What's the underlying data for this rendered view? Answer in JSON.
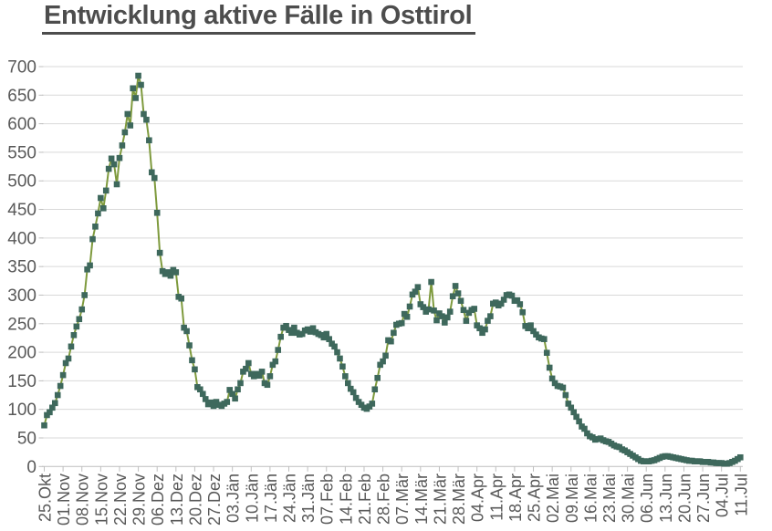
{
  "chart_data": {
    "type": "line",
    "title": "Entwicklung aktive Fälle in Osttirol",
    "xlabel": "",
    "ylabel": "",
    "ylim": [
      0,
      700
    ],
    "y_tick_step": 50,
    "y_tick_labels": [
      "0",
      "50",
      "100",
      "150",
      "200",
      "250",
      "300",
      "350",
      "400",
      "450",
      "500",
      "550",
      "600",
      "650",
      "700"
    ],
    "grid": true,
    "legend": false,
    "marker": "square",
    "x_tick_interval_days": 7,
    "x_tick_labels": [
      "25.Okt",
      "01.Nov",
      "08.Nov",
      "15.Nov",
      "22.Nov",
      "29.Nov",
      "06.Dez",
      "13.Dez",
      "20.Dez",
      "27.Dez",
      "03.Jän",
      "10.Jän",
      "17.Jän",
      "24.Jän",
      "31.Jän",
      "07.Feb",
      "14.Feb",
      "21.Feb",
      "28.Feb",
      "07.Mär",
      "14.Mär",
      "21.Mär",
      "28.Mär",
      "04.Apr",
      "11.Apr",
      "18.Apr",
      "25.Apr",
      "02.Mai",
      "09.Mai",
      "16.Mai",
      "23.Mai",
      "30.Mai",
      "06.Jun",
      "13.Jun",
      "20.Jun",
      "27.Jun",
      "04.Jul",
      "11.Jul"
    ],
    "values": [
      72,
      90,
      95,
      103,
      111,
      125,
      141,
      160,
      181,
      189,
      210,
      230,
      245,
      258,
      275,
      300,
      345,
      352,
      398,
      420,
      443,
      470,
      452,
      483,
      521,
      539,
      529,
      494,
      540,
      562,
      585,
      617,
      597,
      662,
      645,
      684,
      668,
      617,
      607,
      571,
      515,
      505,
      444,
      374,
      342,
      337,
      340,
      334,
      344,
      340,
      297,
      294,
      243,
      237,
      212,
      186,
      170,
      139,
      135,
      127,
      118,
      109,
      112,
      106,
      113,
      108,
      106,
      110,
      113,
      134,
      127,
      119,
      135,
      146,
      166,
      171,
      181,
      162,
      158,
      162,
      159,
      166,
      146,
      143,
      158,
      178,
      184,
      204,
      227,
      243,
      246,
      239,
      234,
      243,
      234,
      231,
      232,
      238,
      240,
      236,
      242,
      235,
      232,
      230,
      226,
      232,
      223,
      215,
      210,
      200,
      189,
      175,
      158,
      146,
      136,
      130,
      120,
      113,
      108,
      103,
      101,
      105,
      110,
      135,
      155,
      178,
      184,
      194,
      221,
      219,
      234,
      248,
      250,
      251,
      267,
      262,
      280,
      301,
      306,
      314,
      284,
      279,
      271,
      275,
      323,
      273,
      256,
      268,
      263,
      252,
      261,
      271,
      298,
      316,
      303,
      290,
      274,
      255,
      269,
      274,
      276,
      247,
      242,
      234,
      240,
      255,
      263,
      285,
      287,
      282,
      285,
      292,
      300,
      301,
      299,
      290,
      291,
      284,
      270,
      246,
      242,
      247,
      237,
      231,
      226,
      224,
      223,
      199,
      173,
      154,
      146,
      141,
      140,
      138,
      125,
      110,
      103,
      95,
      87,
      79,
      70,
      66,
      58,
      53,
      51,
      47,
      48,
      49,
      46,
      44,
      43,
      40,
      37,
      35,
      34,
      30,
      28,
      25,
      22,
      19,
      16,
      13,
      10,
      9,
      9,
      9,
      10,
      11,
      13,
      15,
      17,
      18,
      18,
      17,
      16,
      15,
      14,
      13,
      12,
      11,
      10,
      10,
      9,
      9,
      9,
      8,
      8,
      8,
      7,
      7,
      6,
      6,
      6,
      5,
      5,
      6,
      8,
      10,
      13,
      16
    ],
    "colors": {
      "line": "#7e9a3d",
      "marker": "#3e685c",
      "grid": "#d9d9d9",
      "axis": "#bfbfbf",
      "tick_label": "#595959",
      "title": "#4d4d4d"
    }
  }
}
